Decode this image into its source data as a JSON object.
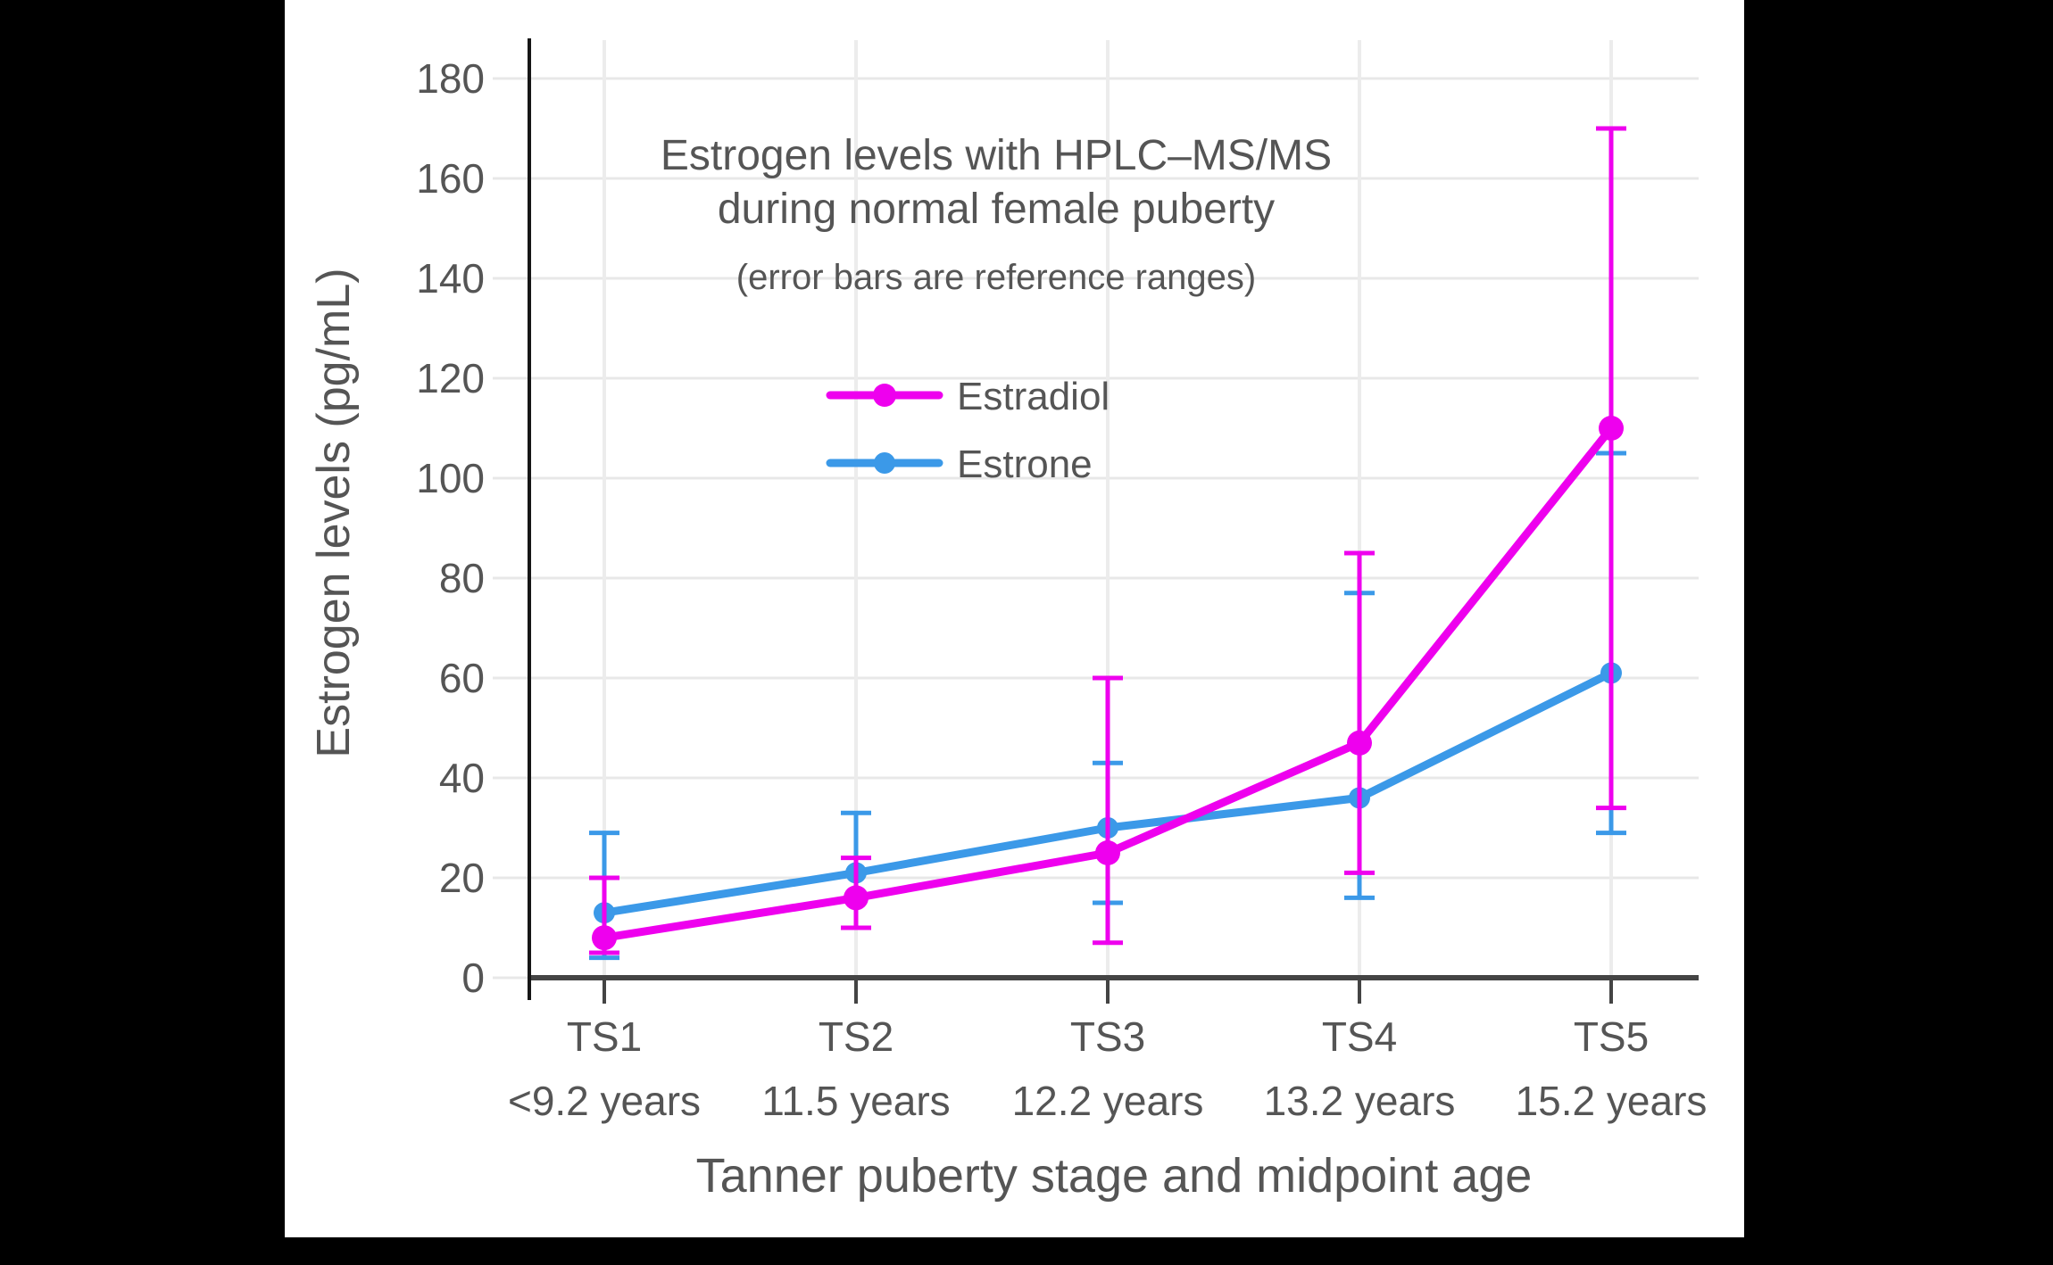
{
  "figure": {
    "background_color": "#000000",
    "panel_color": "#ffffff"
  },
  "chart_data": {
    "type": "line",
    "title_line1": "Estrogen levels with HPLC–MS/MS",
    "title_line2": "during normal female puberty",
    "subtitle": "(error bars are reference ranges)",
    "xlabel": "Tanner puberty stage and midpoint age",
    "ylabel": "Estrogen levels (pg/mL)",
    "categories": [
      "TS1",
      "TS2",
      "TS3",
      "TS4",
      "TS5"
    ],
    "category_ages": [
      "<9.2 years",
      "11.5 years",
      "12.2 years",
      "13.2 years",
      "15.2 years"
    ],
    "y_ticks": [
      0,
      20,
      40,
      60,
      80,
      100,
      120,
      140,
      160,
      180
    ],
    "ylim": [
      0,
      187
    ],
    "grid": true,
    "legend_position": "upper-center",
    "error_bar_meaning": "reference ranges",
    "series": [
      {
        "name": "Estrone",
        "color": "#3B99E8",
        "values": [
          13,
          21,
          30,
          36,
          61
        ],
        "error_low": [
          4,
          10,
          15,
          16,
          29
        ],
        "error_high": [
          29,
          33,
          43,
          77,
          105
        ]
      },
      {
        "name": "Estradiol",
        "color": "#EE00EE",
        "values": [
          8,
          16,
          25,
          47,
          110
        ],
        "error_low": [
          5,
          10,
          7,
          21,
          34
        ],
        "error_high": [
          20,
          24,
          60,
          85,
          170
        ]
      }
    ],
    "colors": {
      "grid": "#e8e8e8",
      "grid_vertical": "#ececec",
      "x_axis": "#444444",
      "y_spine": "#161616",
      "text": "#555555"
    }
  }
}
